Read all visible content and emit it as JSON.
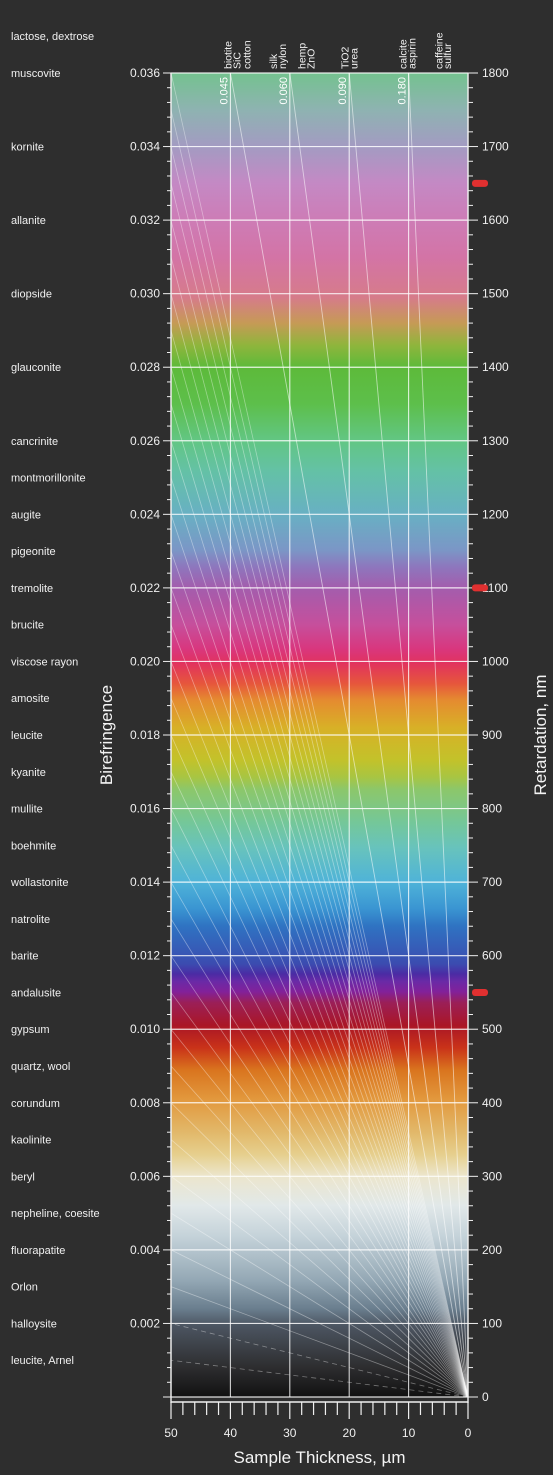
{
  "chart_data": {
    "type": "michel-levy birefringence chart",
    "title": "",
    "xlabel": "Sample Thickness, µm",
    "ylabel_left": "Birefringence",
    "ylabel_right": "Retardation, nm",
    "xlim": [
      50,
      0
    ],
    "retardation_lim": [
      0,
      1800
    ],
    "x_ticks": [
      50,
      40,
      30,
      20,
      10,
      0
    ],
    "retardation_ticks": [
      0,
      100,
      200,
      300,
      400,
      500,
      600,
      700,
      800,
      900,
      1000,
      1100,
      1200,
      1300,
      1400,
      1500,
      1600,
      1700,
      1800
    ],
    "birefringence_ticks": [
      "0.002",
      "0.004",
      "0.006",
      "0.008",
      "0.010",
      "0.012",
      "0.014",
      "0.016",
      "0.018",
      "0.020",
      "0.022",
      "0.024",
      "0.026",
      "0.028",
      "0.030",
      "0.032",
      "0.034",
      "0.036"
    ],
    "minerals": [
      {
        "name": "lactose, dextrose",
        "row": -0.5
      },
      {
        "name": "muscovite",
        "row": 0
      },
      {
        "name": "kornite",
        "row": 1
      },
      {
        "name": "allanite",
        "row": 2
      },
      {
        "name": "diopside",
        "row": 3
      },
      {
        "name": "glauconite",
        "row": 4
      },
      {
        "name": "cancrinite",
        "row": 5
      },
      {
        "name": "montmorillonite",
        "row": 5.5
      },
      {
        "name": "augite",
        "row": 6
      },
      {
        "name": "pigeonite",
        "row": 6.5
      },
      {
        "name": "tremolite",
        "row": 7
      },
      {
        "name": "brucite",
        "row": 7.5
      },
      {
        "name": "viscose rayon",
        "row": 8
      },
      {
        "name": "amosite",
        "row": 8.5
      },
      {
        "name": "leucite",
        "row": 9
      },
      {
        "name": "kyanite",
        "row": 9.5
      },
      {
        "name": "mullite",
        "row": 10
      },
      {
        "name": "boehmite",
        "row": 10.5
      },
      {
        "name": "wollastonite",
        "row": 11
      },
      {
        "name": "natrolite",
        "row": 11.5
      },
      {
        "name": "barite",
        "row": 12
      },
      {
        "name": "andalusite",
        "row": 12.5
      },
      {
        "name": "gypsum",
        "row": 13
      },
      {
        "name": "quartz, wool",
        "row": 13.5
      },
      {
        "name": "corundum",
        "row": 14
      },
      {
        "name": "kaolinite",
        "row": 14.5
      },
      {
        "name": "beryl",
        "row": 15
      },
      {
        "name": "nepheline, coesite",
        "row": 15.5
      },
      {
        "name": "fluorapatite",
        "row": 16
      },
      {
        "name": "Orlon",
        "row": 16.5
      },
      {
        "name": "halloysite",
        "row": 17
      },
      {
        "name": "leucite, Arnel",
        "row": 17.5
      }
    ],
    "top_materials": [
      {
        "name": "biotite",
        "x": 40.5
      },
      {
        "name": "SiC",
        "x": 39.0
      },
      {
        "name": "cotton",
        "x": 37.3
      },
      {
        "name": "silk",
        "x": 32.8
      },
      {
        "name": "nylon",
        "x": 31.3
      },
      {
        "name": "hemp",
        "x": 28.0
      },
      {
        "name": "ZnO",
        "x": 26.5
      },
      {
        "name": "TiO2",
        "x": 20.8
      },
      {
        "name": "urea",
        "x": 19.3
      },
      {
        "name": "calcite",
        "x": 11.0
      },
      {
        "name": "aspirin",
        "x": 9.5
      },
      {
        "name": "caffeine",
        "x": 5.0
      },
      {
        "name": "sulfur",
        "x": 3.5
      }
    ],
    "birefringence_line_labels": [
      {
        "label": "0.045",
        "x": 40
      },
      {
        "label": "0.060",
        "x": 30
      },
      {
        "label": "0.090",
        "x": 20
      },
      {
        "label": "0.180",
        "x": 10
      }
    ],
    "red_markers_nm": [
      550,
      1100,
      1650
    ],
    "interference_colors": [
      {
        "nm": 0,
        "color": "#111111"
      },
      {
        "nm": 40,
        "color": "#2d2d2f"
      },
      {
        "nm": 97,
        "color": "#4c5561"
      },
      {
        "nm": 120,
        "color": "#6a7e8e"
      },
      {
        "nm": 158,
        "color": "#93a7b4"
      },
      {
        "nm": 218,
        "color": "#c4d2d9"
      },
      {
        "nm": 260,
        "color": "#e1e8e9"
      },
      {
        "nm": 300,
        "color": "#ece6cd"
      },
      {
        "nm": 330,
        "color": "#e6cf8d"
      },
      {
        "nm": 360,
        "color": "#e2b86a"
      },
      {
        "nm": 405,
        "color": "#e2983d"
      },
      {
        "nm": 445,
        "color": "#d9741e"
      },
      {
        "nm": 475,
        "color": "#c93219"
      },
      {
        "nm": 505,
        "color": "#aa1626"
      },
      {
        "nm": 536,
        "color": "#9b1f57"
      },
      {
        "nm": 551,
        "color": "#82219a"
      },
      {
        "nm": 565,
        "color": "#6a2aa6"
      },
      {
        "nm": 575,
        "color": "#4b2ba4"
      },
      {
        "nm": 589,
        "color": "#3b4cb0"
      },
      {
        "nm": 640,
        "color": "#2f73c2"
      },
      {
        "nm": 664,
        "color": "#3a95d2"
      },
      {
        "nm": 700,
        "color": "#4fb3d8"
      },
      {
        "nm": 747,
        "color": "#68c3bc"
      },
      {
        "nm": 780,
        "color": "#74c79a"
      },
      {
        "nm": 826,
        "color": "#8cc76a"
      },
      {
        "nm": 843,
        "color": "#a8c542"
      },
      {
        "nm": 866,
        "color": "#c3c22a"
      },
      {
        "nm": 910,
        "color": "#d8b027"
      },
      {
        "nm": 948,
        "color": "#e58a30"
      },
      {
        "nm": 970,
        "color": "#e6563c"
      },
      {
        "nm": 998,
        "color": "#e1325f"
      },
      {
        "nm": 1018,
        "color": "#d8377f"
      },
      {
        "nm": 1050,
        "color": "#c64f9c"
      },
      {
        "nm": 1100,
        "color": "#a35dad"
      },
      {
        "nm": 1128,
        "color": "#8e76bd"
      },
      {
        "nm": 1151,
        "color": "#7b96c6"
      },
      {
        "nm": 1200,
        "color": "#68b0c3"
      },
      {
        "nm": 1258,
        "color": "#64c1a6"
      },
      {
        "nm": 1300,
        "color": "#62c684"
      },
      {
        "nm": 1350,
        "color": "#5dbf4b"
      },
      {
        "nm": 1400,
        "color": "#5dba3a"
      },
      {
        "nm": 1430,
        "color": "#8fb53c"
      },
      {
        "nm": 1460,
        "color": "#c69a56"
      },
      {
        "nm": 1495,
        "color": "#d67b8a"
      },
      {
        "nm": 1550,
        "color": "#d374a6"
      },
      {
        "nm": 1600,
        "color": "#cd7cb6"
      },
      {
        "nm": 1650,
        "color": "#c489c4"
      },
      {
        "nm": 1700,
        "color": "#a39bc2"
      },
      {
        "nm": 1750,
        "color": "#8eb3b1"
      },
      {
        "nm": 1800,
        "color": "#74c28f"
      }
    ],
    "grid": true,
    "colors": {
      "background": "#2e2e2e",
      "text": "#f0f0f0",
      "marker": "#e03030"
    }
  }
}
